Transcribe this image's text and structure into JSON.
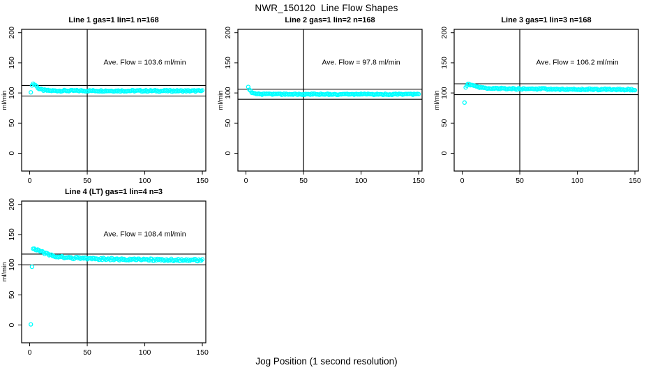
{
  "page": {
    "main_title": "NWR_150120  Line Flow Shapes",
    "x_axis_label": "Jog Position (1 second resolution)",
    "background_color": "#ffffff"
  },
  "style": {
    "point_color": "#00FFFF",
    "axis_color": "#000000"
  },
  "chart_data": [
    {
      "type": "scatter",
      "title": "Line 1 gas=1 lin=1 n=168",
      "annotation": "Ave. Flow =  103.6  ml/min",
      "ave_flow_ml_min": 103.6,
      "n": 168,
      "ylabel": "ml/min",
      "xlim": [
        -7,
        153
      ],
      "ylim": [
        -29.5,
        205.5
      ],
      "x_ticks": [
        0,
        50,
        100,
        150
      ],
      "y_ticks": [
        0,
        50,
        100,
        150,
        200
      ],
      "vline_x": 50,
      "hlines": [
        112.4,
        94.8
      ],
      "outliers": [
        [
          1,
          101
        ]
      ],
      "profile": [
        [
          2,
          113.5
        ],
        [
          3,
          115.2
        ],
        [
          5,
          113
        ],
        [
          8,
          107
        ],
        [
          12,
          104.5
        ],
        [
          18,
          103.7
        ],
        [
          150,
          103.4
        ]
      ],
      "x_start": 2,
      "x_end": 150,
      "noise": 1.2,
      "annotation_pos": [
        100,
        147
      ]
    },
    {
      "type": "scatter",
      "title": "Line 2 gas=1 lin=2 n=168",
      "annotation": "Ave. Flow =  97.8  ml/min",
      "ave_flow_ml_min": 97.8,
      "n": 168,
      "ylabel": "ml/min",
      "xlim": [
        -7,
        153
      ],
      "ylim": [
        -29.5,
        205.5
      ],
      "x_ticks": [
        0,
        50,
        100,
        150
      ],
      "y_ticks": [
        0,
        50,
        100,
        150,
        200
      ],
      "vline_x": 50,
      "hlines": [
        106.1,
        89.5
      ],
      "outliers": [
        [
          2,
          110
        ]
      ],
      "profile": [
        [
          3,
          106
        ],
        [
          5,
          100
        ],
        [
          8,
          98.3
        ],
        [
          15,
          97.9
        ],
        [
          150,
          97.7
        ]
      ],
      "x_start": 3,
      "x_end": 150,
      "noise": 1.0,
      "annotation_pos": [
        100,
        147
      ]
    },
    {
      "type": "scatter",
      "title": "Line 3 gas=1 lin=3 n=168",
      "annotation": "Ave. Flow =  106.2  ml/min",
      "ave_flow_ml_min": 106.2,
      "n": 168,
      "ylabel": "ml/min",
      "xlim": [
        -7,
        153
      ],
      "ylim": [
        -29.5,
        205.5
      ],
      "x_ticks": [
        0,
        50,
        100,
        150
      ],
      "y_ticks": [
        0,
        50,
        100,
        150,
        200
      ],
      "vline_x": 50,
      "hlines": [
        115.2,
        97.2
      ],
      "outliers": [
        [
          2,
          84
        ]
      ],
      "profile": [
        [
          3,
          110
        ],
        [
          5,
          114
        ],
        [
          8,
          113.5
        ],
        [
          12,
          110.5
        ],
        [
          20,
          108
        ],
        [
          40,
          107
        ],
        [
          80,
          106.3
        ],
        [
          150,
          105.6
        ]
      ],
      "x_start": 3,
      "x_end": 150,
      "noise": 1.2,
      "annotation_pos": [
        100,
        147
      ]
    },
    {
      "type": "scatter",
      "title": "Line 4 (LT) gas=1 lin=4 n=3",
      "annotation": "Ave. Flow =  108.4  ml/min",
      "ave_flow_ml_min": 108.4,
      "n": 3,
      "ylabel": "ml/min",
      "xlim": [
        -7,
        153
      ],
      "ylim": [
        -29.5,
        205.5
      ],
      "x_ticks": [
        0,
        50,
        100,
        150
      ],
      "y_ticks": [
        0,
        50,
        100,
        150,
        200
      ],
      "vline_x": 50,
      "hlines": [
        117.6,
        99.7
      ],
      "outliers": [
        [
          1,
          1
        ],
        [
          2,
          96.5
        ]
      ],
      "profile": [
        [
          3,
          128
        ],
        [
          6,
          125
        ],
        [
          10,
          121.5
        ],
        [
          15,
          117.5
        ],
        [
          22,
          114
        ],
        [
          30,
          112
        ],
        [
          45,
          110.5
        ],
        [
          70,
          109.3
        ],
        [
          110,
          108.3
        ],
        [
          150,
          107.3
        ]
      ],
      "x_start": 3,
      "x_end": 150,
      "noise": 1.8,
      "annotation_pos": [
        100,
        147
      ]
    }
  ]
}
